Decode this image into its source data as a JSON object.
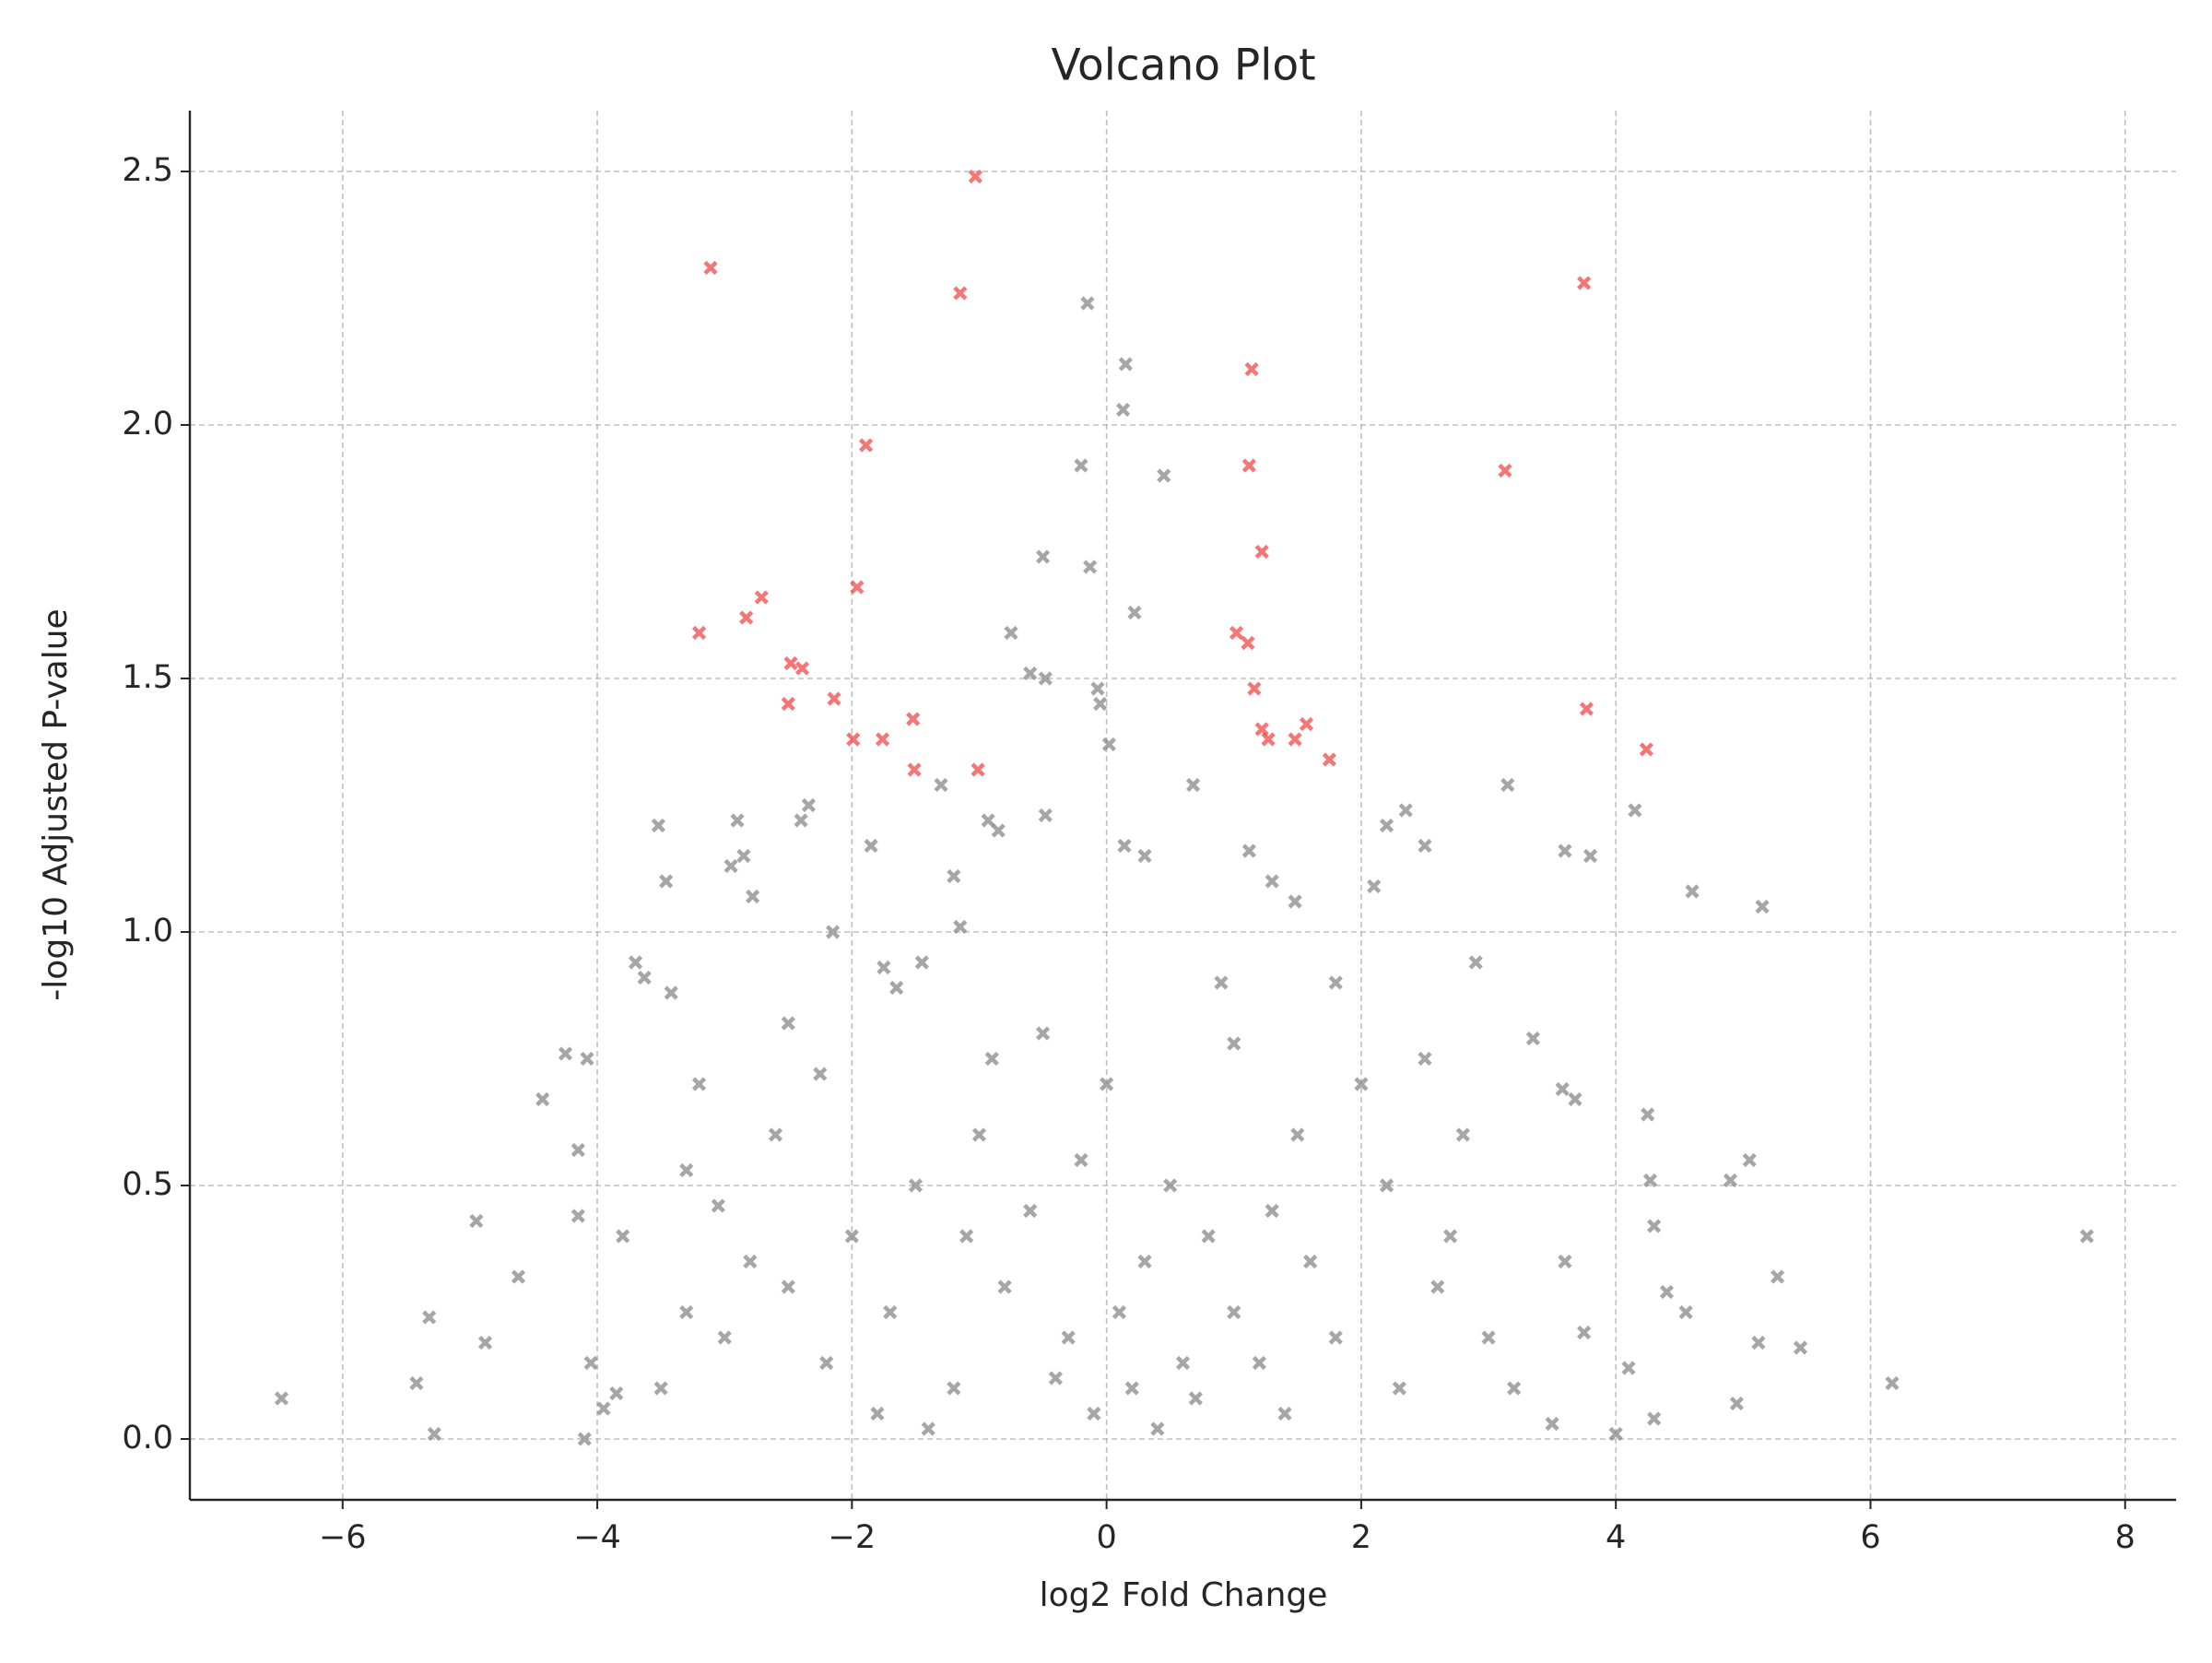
{
  "chart_data": {
    "type": "scatter",
    "title": "Volcano Plot",
    "x_label": "log2 Fold Change",
    "y_label": "-log10 Adjusted P-value",
    "xlim": [
      -7.2,
      8.4
    ],
    "ylim": [
      -0.12,
      2.62
    ],
    "xticks": [
      {
        "value": -6,
        "label": "−6"
      },
      {
        "value": -4,
        "label": "−4"
      },
      {
        "value": -2,
        "label": "−2"
      },
      0,
      2,
      4,
      6,
      8
    ],
    "yticks": [
      {
        "value": 0,
        "label": "0.0"
      },
      0.5,
      {
        "value": 1,
        "label": "1.0"
      },
      1.5,
      {
        "value": 2,
        "label": "2.0"
      },
      2.5
    ],
    "grid": true,
    "series": [
      {
        "color": "#808080",
        "x": [
          -6.48,
          -5.42,
          -5.32,
          -5.28,
          -4.95,
          -4.88,
          -4.62,
          -4.43,
          -4.25,
          -4.08,
          -4.15,
          -4.15,
          -4.05,
          -4.1,
          -3.95,
          -3.85,
          -3.7,
          -3.63,
          -3.52,
          -3.46,
          -3.42,
          -3.3,
          -3.2,
          -3.05,
          -2.9,
          -2.85,
          -2.78,
          -2.95,
          -2.4,
          -2.34,
          -2.5,
          -2.25,
          -2.15,
          -1.85,
          -1.75,
          -1.65,
          -1.45,
          -1.3,
          -1.2,
          -1.15,
          -0.93,
          -0.85,
          -0.75,
          -0.6,
          -0.5,
          -0.48,
          -0.48,
          -0.2,
          -0.15,
          -0.13,
          -0.07,
          -0.05,
          0.02,
          0.15,
          0.13,
          0.22,
          0.45,
          0.68,
          0.14,
          0.3,
          1.12,
          1.3,
          1.48,
          1.8,
          2.2,
          2.35,
          2.5,
          2.1,
          2.9,
          3.15,
          3.6,
          3.8,
          4.15,
          4.6,
          5.15,
          3.35,
          3.68,
          3.58,
          4.25,
          4.27,
          4.3,
          4.9,
          5.05,
          5.27,
          5.12,
          5.45,
          4.95,
          6.17,
          7.7,
          4.0,
          4.3,
          4.1,
          4.4,
          4.55,
          3.5,
          3.75,
          3.0,
          2.7,
          2.8,
          2.2,
          2.0,
          1.5,
          1.0,
          0.5,
          0.0,
          -0.5,
          -1.0,
          -1.5,
          -2.0,
          -2.5,
          -3.0,
          -3.5,
          -3.3,
          -2.8,
          -2.2,
          -1.8,
          -1.2,
          -0.8,
          -0.3,
          0.2,
          0.6,
          1.0,
          1.4,
          1.8,
          2.3,
          2.6,
          3.2,
          0.3,
          -0.6,
          0.8,
          -1.4,
          0.4,
          1.6,
          -2.6,
          -0.2,
          0.9,
          -0.9,
          1.3,
          -1.7,
          2.5,
          -3.8,
          3.6,
          -0.1,
          0.7,
          -0.4,
          1.2,
          0.1,
          -1.1
        ],
        "values": [
          0.08,
          0.11,
          0.24,
          0.01,
          0.43,
          0.19,
          0.32,
          0.67,
          0.76,
          0.75,
          0.57,
          0.44,
          0.15,
          0.0,
          0.06,
          0.09,
          0.94,
          0.91,
          1.21,
          1.1,
          0.88,
          0.53,
          0.7,
          0.46,
          1.22,
          1.15,
          1.07,
          1.13,
          1.22,
          1.25,
          0.82,
          0.72,
          1.0,
          1.17,
          0.93,
          0.89,
          0.94,
          1.29,
          1.11,
          1.01,
          1.22,
          1.2,
          1.59,
          1.51,
          1.74,
          1.5,
          1.23,
          1.92,
          2.24,
          1.72,
          1.48,
          1.45,
          1.37,
          2.12,
          2.03,
          1.63,
          1.9,
          1.29,
          1.17,
          1.15,
          1.16,
          1.1,
          1.06,
          0.9,
          1.21,
          1.24,
          1.17,
          1.09,
          0.94,
          1.29,
          1.16,
          1.15,
          1.24,
          1.08,
          1.05,
          0.79,
          0.67,
          0.69,
          0.64,
          0.51,
          0.42,
          0.51,
          0.55,
          0.32,
          0.19,
          0.18,
          0.07,
          0.11,
          0.4,
          0.01,
          0.04,
          0.14,
          0.29,
          0.25,
          0.03,
          0.21,
          0.2,
          0.4,
          0.6,
          0.5,
          0.7,
          0.6,
          0.78,
          0.5,
          0.7,
          0.8,
          0.6,
          0.5,
          0.4,
          0.3,
          0.2,
          0.1,
          0.25,
          0.35,
          0.15,
          0.05,
          0.1,
          0.3,
          0.2,
          0.1,
          0.15,
          0.25,
          0.05,
          0.2,
          0.1,
          0.3,
          0.1,
          0.35,
          0.45,
          0.4,
          0.02,
          0.02,
          0.35,
          0.6,
          0.55,
          0.9,
          0.75,
          0.45,
          0.25,
          0.75,
          0.4,
          0.35,
          0.05,
          0.08,
          0.12,
          0.15,
          0.25,
          0.4
        ]
      },
      {
        "color": "#f03c3c",
        "x": [
          -3.11,
          -1.03,
          -1.15,
          -1.89,
          -2.71,
          -2.83,
          -3.2,
          -1.96,
          -2.48,
          -2.39,
          -2.5,
          -2.14,
          -1.99,
          -1.76,
          -1.52,
          -1.51,
          -1.01,
          1.14,
          1.12,
          1.22,
          1.02,
          1.11,
          1.16,
          1.22,
          1.27,
          1.48,
          1.57,
          1.75,
          3.75,
          3.13,
          3.77,
          4.24
        ],
        "values": [
          2.31,
          2.49,
          2.26,
          1.96,
          1.66,
          1.62,
          1.59,
          1.68,
          1.53,
          1.52,
          1.45,
          1.46,
          1.38,
          1.38,
          1.42,
          1.32,
          1.32,
          2.11,
          1.92,
          1.75,
          1.59,
          1.57,
          1.48,
          1.4,
          1.38,
          1.38,
          1.41,
          1.34,
          2.28,
          1.91,
          1.44,
          1.36
        ]
      }
    ]
  }
}
